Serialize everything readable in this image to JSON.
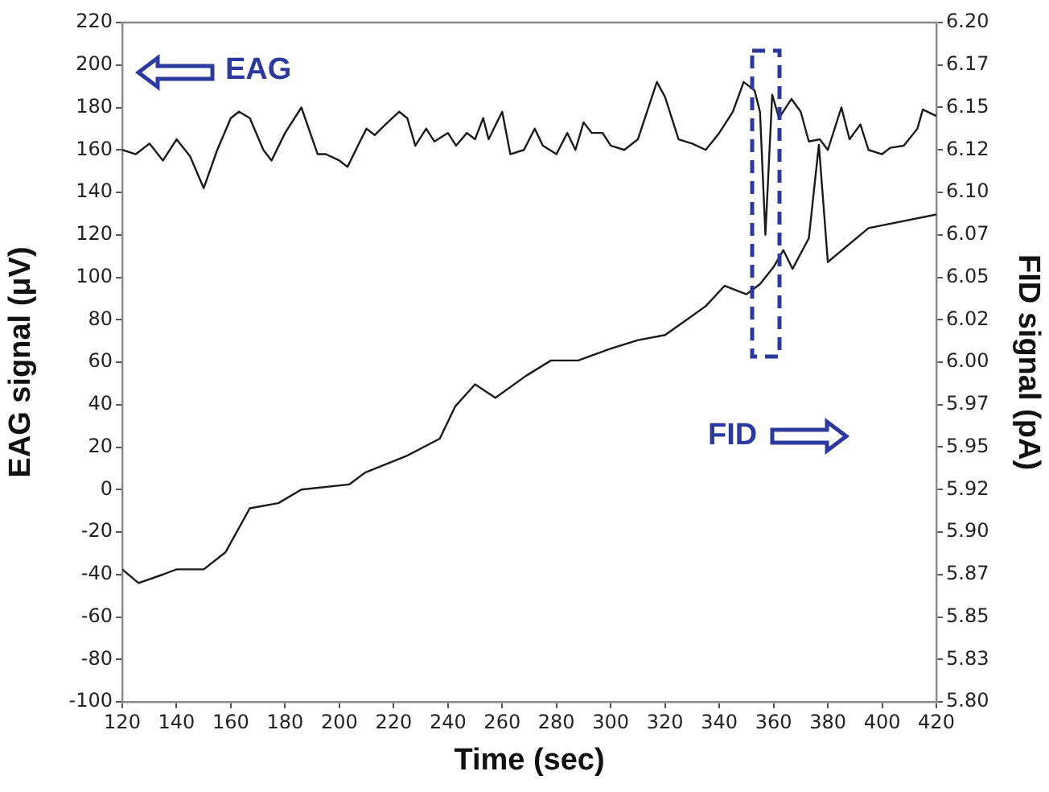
{
  "chart_data": {
    "type": "line",
    "xlabel": "Time (sec)",
    "ylabel": "EAG signal (μV)",
    "y2label": "FID signal (pA)",
    "xlim": [
      120,
      420
    ],
    "xticks": [
      120,
      140,
      160,
      180,
      200,
      220,
      240,
      260,
      280,
      300,
      320,
      340,
      360,
      380,
      400,
      420
    ],
    "ylim": [
      -100,
      220
    ],
    "yticks": [
      -100,
      -80,
      -60,
      -40,
      -20,
      0,
      20,
      40,
      60,
      80,
      100,
      120,
      140,
      160,
      180,
      200,
      220
    ],
    "y2lim": [
      5.8,
      6.2
    ],
    "y2ticks": [
      {
        "value": 5.8,
        "label": "5.80"
      },
      {
        "value": 5.825,
        "label": "5.83"
      },
      {
        "value": 5.85,
        "label": "5.85"
      },
      {
        "value": 5.875,
        "label": "5.87"
      },
      {
        "value": 5.9,
        "label": "5.90"
      },
      {
        "value": 5.925,
        "label": "5.92"
      },
      {
        "value": 5.95,
        "label": "5.95"
      },
      {
        "value": 5.975,
        "label": "5.97"
      },
      {
        "value": 6.0,
        "label": "6.00"
      },
      {
        "value": 6.025,
        "label": "6.02"
      },
      {
        "value": 6.05,
        "label": "6.05"
      },
      {
        "value": 6.075,
        "label": "6.07"
      },
      {
        "value": 6.1,
        "label": "6.10"
      },
      {
        "value": 6.125,
        "label": "6.12"
      },
      {
        "value": 6.15,
        "label": "6.15"
      },
      {
        "value": 6.175,
        "label": "6.17"
      },
      {
        "value": 6.2,
        "label": "6.20"
      }
    ],
    "annotations": [
      "EAG",
      "FID"
    ],
    "marker": "none",
    "line_style": "solid",
    "series": [
      {
        "color": "#1a1a1a",
        "x": [
          120,
          125,
          130,
          135,
          140,
          145,
          150,
          155,
          160,
          163,
          167,
          172,
          175,
          180,
          186,
          192,
          195,
          200,
          203,
          208,
          210,
          213,
          217,
          222,
          225,
          228,
          232,
          235,
          240,
          243,
          247,
          250,
          253,
          255,
          260,
          263,
          268,
          272,
          275,
          280,
          284,
          287,
          290,
          293,
          297,
          300,
          305,
          310,
          317,
          320,
          325,
          330,
          335,
          340,
          345,
          349,
          353,
          355,
          357,
          359.5,
          362,
          366.6,
          370,
          373,
          377,
          380,
          385,
          388,
          392,
          395,
          400,
          403,
          408,
          413,
          415,
          420
        ],
        "values": [
          160,
          158,
          163,
          155,
          165,
          157,
          142,
          160,
          175,
          178,
          175,
          160,
          155,
          168,
          180,
          158,
          158,
          155,
          152,
          165,
          170,
          167,
          172,
          178,
          175,
          162,
          170,
          164,
          168,
          162,
          168,
          165,
          175,
          165,
          178,
          158,
          160,
          170,
          162,
          158,
          168,
          160,
          173,
          168,
          168,
          162,
          160,
          165,
          192,
          185,
          165,
          163,
          160,
          168,
          178,
          192,
          188,
          178,
          120,
          186,
          175,
          184,
          178,
          164,
          165,
          160,
          180,
          165,
          172,
          160,
          158,
          161,
          162,
          170,
          179,
          176
        ]
      },
      {
        "color": "#1a1a1a",
        "axis": "y2",
        "x": [
          120,
          126,
          135,
          140,
          150,
          158,
          167,
          177.5,
          186,
          203.6,
          209.5,
          225,
          237,
          242.7,
          250,
          257.5,
          268.8,
          278,
          288,
          300,
          310,
          320,
          328,
          335,
          342,
          350,
          355,
          360,
          363.6,
          367,
          373,
          376.7,
          380,
          395,
          420
        ],
        "values": [
          5.878,
          5.87,
          5.875,
          5.878,
          5.878,
          5.888,
          5.914,
          5.917,
          5.925,
          5.928,
          5.935,
          5.945,
          5.955,
          5.974,
          5.987,
          5.979,
          5.992,
          6.001,
          6.001,
          6.008,
          6.013,
          6.016,
          6.025,
          6.033,
          6.045,
          6.04,
          6.046,
          6.056,
          6.066,
          6.055,
          6.073,
          6.128,
          6.059,
          6.079,
          6.087
        ]
      }
    ]
  }
}
